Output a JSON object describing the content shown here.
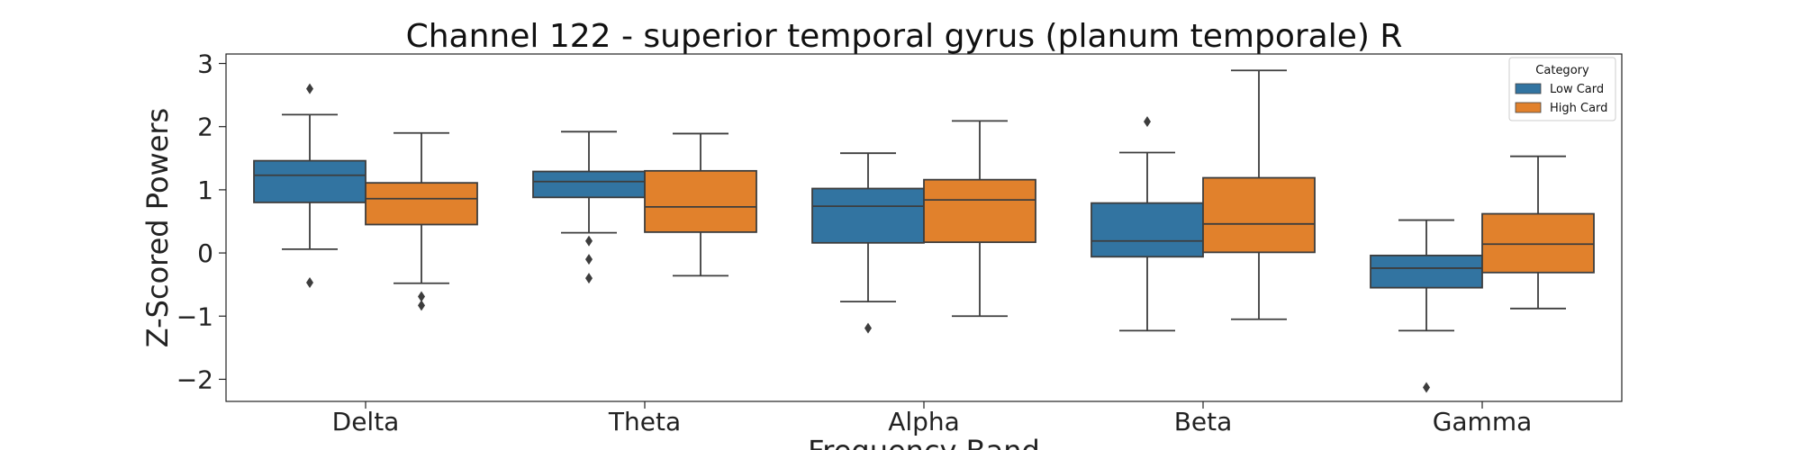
{
  "chart_data": {
    "type": "box",
    "title": "Channel 122 - superior temporal gyrus (planum temporale) R",
    "xlabel": "Frequency Band",
    "ylabel": "Z-Scored Powers",
    "categories": [
      "Delta",
      "Theta",
      "Alpha",
      "Beta",
      "Gamma"
    ],
    "ylim": [
      -2.35,
      3.15
    ],
    "yticks": [
      -2,
      -1,
      0,
      1,
      2,
      3
    ],
    "ytick_labels": [
      "−2",
      "−1",
      "0",
      "1",
      "2",
      "3"
    ],
    "grid": false,
    "legend": {
      "title": "Category",
      "position": "top-right"
    },
    "series": [
      {
        "name": "Low Card",
        "color": "#3274a1",
        "boxes": [
          {
            "whislo": 0.06,
            "q1": 0.8,
            "med": 1.23,
            "q3": 1.46,
            "whishi": 2.19,
            "fliers": [
              2.6,
              -0.47
            ]
          },
          {
            "whislo": 0.32,
            "q1": 0.88,
            "med": 1.13,
            "q3": 1.29,
            "whishi": 1.92,
            "fliers": [
              0.19,
              -0.1,
              -0.4
            ]
          },
          {
            "whislo": -0.77,
            "q1": 0.16,
            "med": 0.74,
            "q3": 1.02,
            "whishi": 1.58,
            "fliers": [
              -1.19
            ]
          },
          {
            "whislo": -1.23,
            "q1": -0.06,
            "med": 0.19,
            "q3": 0.79,
            "whishi": 1.59,
            "fliers": [
              2.08
            ]
          },
          {
            "whislo": -1.23,
            "q1": -0.55,
            "med": -0.24,
            "q3": -0.04,
            "whishi": 0.52,
            "fliers": [
              -2.13
            ]
          }
        ]
      },
      {
        "name": "High Card",
        "color": "#e1812c",
        "boxes": [
          {
            "whislo": -0.48,
            "q1": 0.45,
            "med": 0.86,
            "q3": 1.11,
            "whishi": 1.9,
            "fliers": [
              -0.69,
              -0.83
            ]
          },
          {
            "whislo": -0.36,
            "q1": 0.33,
            "med": 0.73,
            "q3": 1.3,
            "whishi": 1.89,
            "fliers": []
          },
          {
            "whislo": -1.0,
            "q1": 0.17,
            "med": 0.84,
            "q3": 1.16,
            "whishi": 2.09,
            "fliers": []
          },
          {
            "whislo": -1.05,
            "q1": 0.01,
            "med": 0.46,
            "q3": 1.19,
            "whishi": 2.89,
            "fliers": []
          },
          {
            "whislo": -0.88,
            "q1": -0.31,
            "med": 0.14,
            "q3": 0.62,
            "whishi": 1.53,
            "fliers": []
          }
        ]
      }
    ]
  }
}
